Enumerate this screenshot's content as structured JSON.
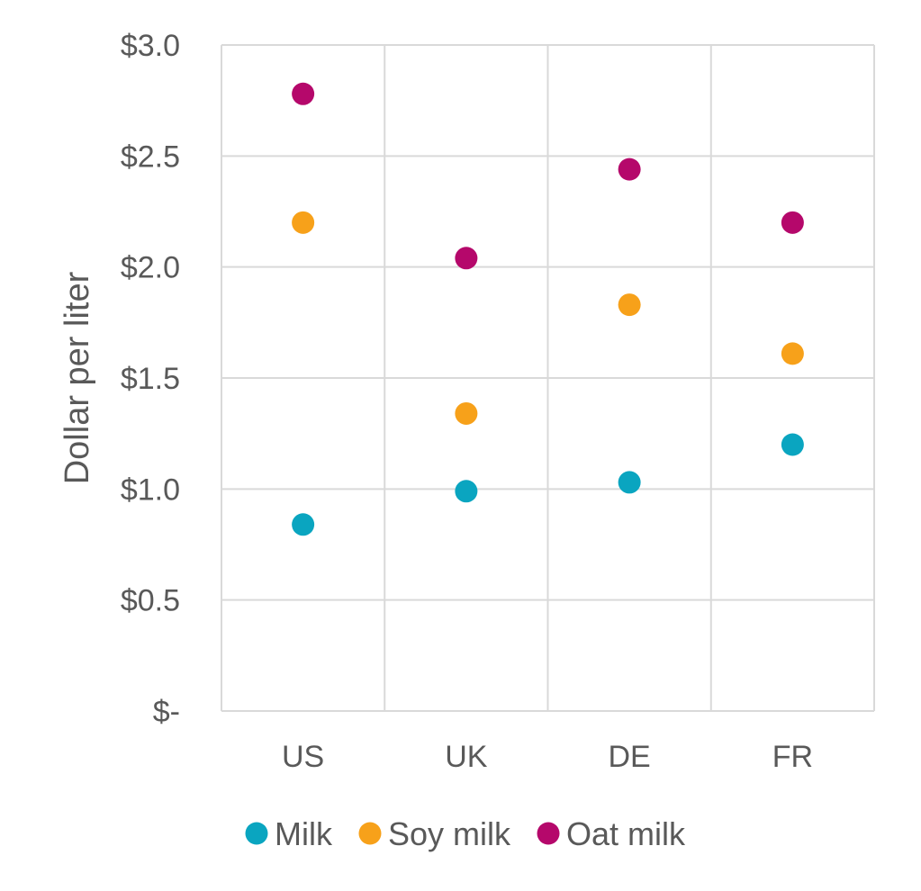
{
  "chart_data": {
    "type": "scatter",
    "title": "",
    "xlabel": "",
    "ylabel": "Dollar per liter",
    "categories": [
      "US",
      "UK",
      "DE",
      "FR"
    ],
    "ylim": [
      0,
      3.0
    ],
    "yticks": [
      {
        "value": 0,
        "label": "$-"
      },
      {
        "value": 0.5,
        "label": "$0.5"
      },
      {
        "value": 1.0,
        "label": "$1.0"
      },
      {
        "value": 1.5,
        "label": "$1.5"
      },
      {
        "value": 2.0,
        "label": "$2.0"
      },
      {
        "value": 2.5,
        "label": "$2.5"
      },
      {
        "value": 3.0,
        "label": "$3.0"
      }
    ],
    "grid": true,
    "legend": "bottom",
    "series": [
      {
        "name": "Milk",
        "color": "#0aa5c0",
        "values": [
          0.84,
          0.99,
          1.03,
          1.2
        ]
      },
      {
        "name": "Soy milk",
        "color": "#f7a11a",
        "values": [
          2.2,
          1.34,
          1.83,
          1.61
        ]
      },
      {
        "name": "Oat milk",
        "color": "#b5086b",
        "values": [
          2.78,
          2.04,
          2.44,
          2.2
        ]
      }
    ]
  }
}
